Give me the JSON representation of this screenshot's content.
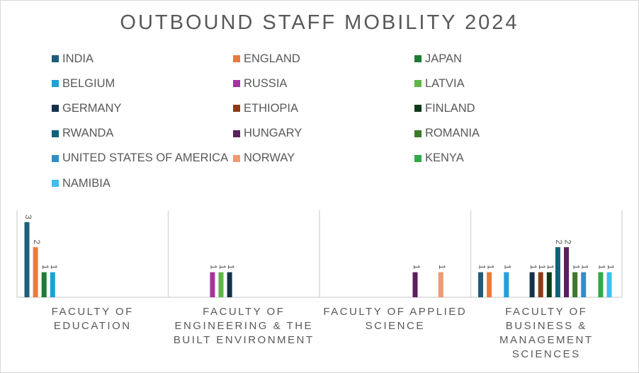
{
  "chart_data": {
    "type": "bar",
    "title": "OUTBOUND STAFF MOBILITY 2024",
    "xlabel": "",
    "ylabel": "",
    "ylim": [
      0,
      3
    ],
    "grid": false,
    "legend_position": "top",
    "categories": [
      "FACULTY OF EDUCATION",
      "FACULTY OF ENGINEERING & THE BUILT ENVIRONMENT",
      "FACULTY OF APPLIED SCIENCE",
      "FACULTY OF BUSINESS & MANAGEMENT SCIENCES"
    ],
    "series": [
      {
        "name": "INDIA",
        "color": "#1f5c7a",
        "values": [
          3,
          null,
          null,
          1
        ]
      },
      {
        "name": "ENGLAND",
        "color": "#e97b3c",
        "values": [
          2,
          null,
          null,
          1
        ]
      },
      {
        "name": "JAPAN",
        "color": "#1e7b34",
        "values": [
          1,
          null,
          null,
          null
        ]
      },
      {
        "name": "BELGIUM",
        "color": "#20a0d8",
        "values": [
          1,
          null,
          null,
          1
        ]
      },
      {
        "name": "RUSSIA",
        "color": "#a7339e",
        "values": [
          null,
          1,
          null,
          null
        ]
      },
      {
        "name": "LATVIA",
        "color": "#5fb646",
        "values": [
          null,
          1,
          null,
          null
        ]
      },
      {
        "name": "GERMANY",
        "color": "#13314a",
        "values": [
          null,
          1,
          null,
          1
        ]
      },
      {
        "name": "ETHIOPIA",
        "color": "#8e3a17",
        "values": [
          null,
          null,
          null,
          1
        ]
      },
      {
        "name": "FINLAND",
        "color": "#0e3a1b",
        "values": [
          null,
          null,
          null,
          1
        ]
      },
      {
        "name": "RWANDA",
        "color": "#0f6279",
        "values": [
          null,
          null,
          null,
          2
        ]
      },
      {
        "name": "HUNGARY",
        "color": "#5b1f5c",
        "values": [
          null,
          null,
          1,
          2
        ]
      },
      {
        "name": "ROMANIA",
        "color": "#3a7a2a",
        "values": [
          null,
          null,
          null,
          1
        ]
      },
      {
        "name": "UNITED STATES OF AMERICA",
        "color": "#2e8fc7",
        "values": [
          null,
          null,
          null,
          1
        ]
      },
      {
        "name": "NORWAY",
        "color": "#ef9a70",
        "values": [
          null,
          null,
          1,
          null
        ]
      },
      {
        "name": "KENYA",
        "color": "#2eaa47",
        "values": [
          null,
          null,
          null,
          1
        ]
      },
      {
        "name": "NAMIBIA",
        "color": "#3cbfef",
        "values": [
          null,
          null,
          null,
          1
        ]
      }
    ]
  },
  "category_label_lines": [
    [
      "FACULTY OF",
      "EDUCATION"
    ],
    [
      "FACULTY OF",
      "ENGINEERING & THE",
      "BUILT ENVIRONMENT"
    ],
    [
      "FACULTY OF APPLIED",
      "SCIENCE"
    ],
    [
      "FACULTY OF",
      "BUSINESS &",
      "MANAGEMENT",
      "SCIENCES"
    ]
  ]
}
